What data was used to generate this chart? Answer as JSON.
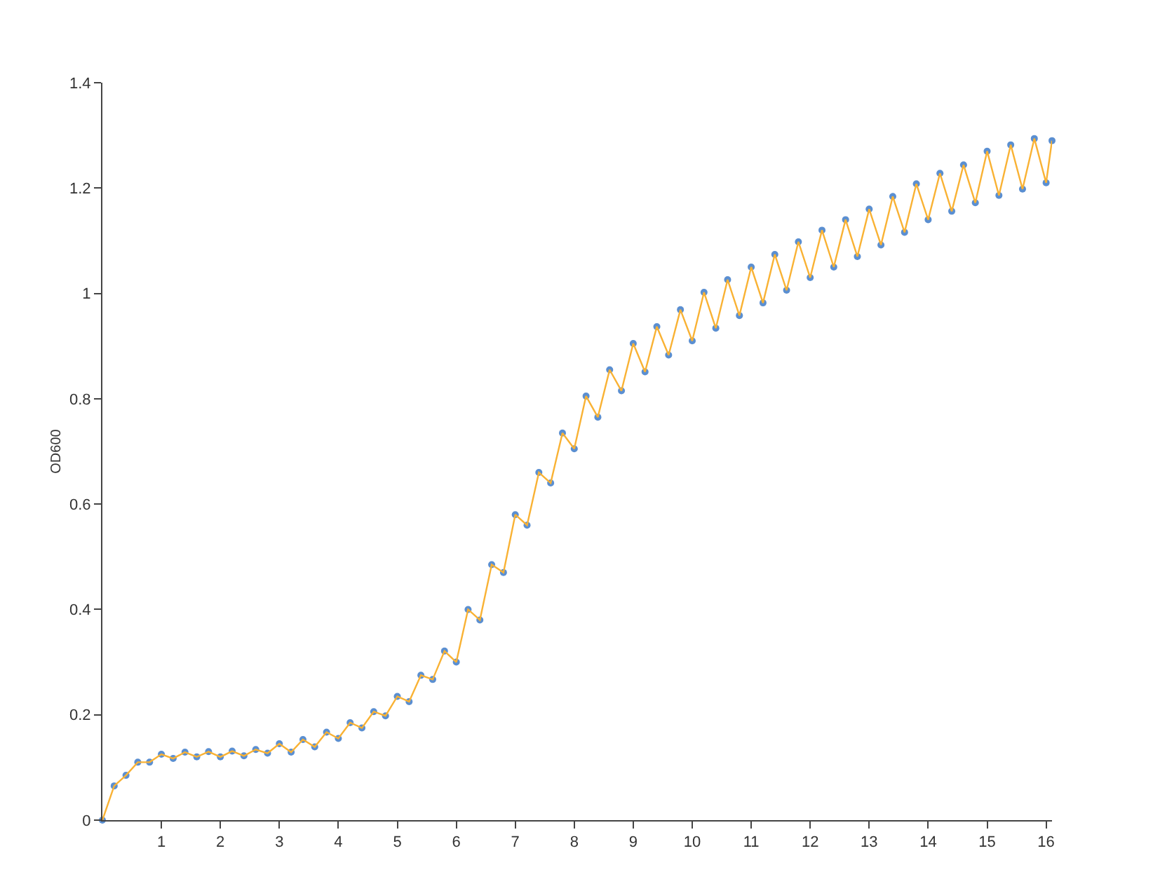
{
  "chart_data": {
    "type": "scatter",
    "ylabel": "OD600",
    "xlim": [
      0,
      16.1
    ],
    "xticks": [
      1,
      2,
      3,
      4,
      5,
      6,
      7,
      8,
      9,
      10,
      11,
      12,
      13,
      14,
      15,
      16
    ],
    "ylim": [
      0,
      1.4
    ],
    "yticks": [
      0,
      0.2,
      0.4,
      0.6,
      0.8,
      1,
      1.2,
      1.4
    ],
    "grid": false,
    "marker": "circle",
    "line_style": "solid",
    "x": [
      0,
      0.2,
      0.4,
      0.6,
      0.8,
      1,
      1.2,
      1.4,
      1.6,
      1.8,
      2,
      2.2,
      2.4,
      2.6,
      2.8,
      3,
      3.2,
      3.4,
      3.6,
      3.8,
      4,
      4.2,
      4.4,
      4.6,
      4.8,
      5,
      5.2,
      5.4,
      5.6,
      5.8,
      6,
      6.2,
      6.4,
      6.6,
      6.8,
      7,
      7.2,
      7.4,
      7.6,
      7.8,
      8,
      8.2,
      8.4,
      8.6,
      8.8,
      9,
      9.2,
      9.4,
      9.6,
      9.8,
      10,
      10.2,
      10.4,
      10.6,
      10.8,
      11,
      11.2,
      11.4,
      11.6,
      11.8,
      12,
      12.2,
      12.4,
      12.6,
      12.8,
      13,
      13.2,
      13.4,
      13.6,
      13.8,
      14,
      14.2,
      14.4,
      14.6,
      14.8,
      15,
      15.2,
      15.4,
      15.6,
      15.8,
      16,
      16.1
    ],
    "series": [
      {
        "color": "#5b8fd1",
        "values": [
          0,
          0.065,
          0.085,
          0.11,
          0.11,
          0.125,
          0.117,
          0.129,
          0.12,
          0.13,
          0.12,
          0.131,
          0.122,
          0.134,
          0.127,
          0.145,
          0.129,
          0.153,
          0.139,
          0.167,
          0.155,
          0.185,
          0.175,
          0.206,
          0.198,
          0.235,
          0.225,
          0.275,
          0.267,
          0.321,
          0.3,
          0.4,
          0.38,
          0.485,
          0.47,
          0.58,
          0.56,
          0.66,
          0.64,
          0.735,
          0.705,
          0.805,
          0.765,
          0.855,
          0.815,
          0.905,
          0.851,
          0.937,
          0.883,
          0.969,
          0.91,
          1.002,
          0.934,
          1.026,
          0.958,
          1.05,
          0.982,
          1.074,
          1.006,
          1.098,
          1.03,
          1.12,
          1.05,
          1.14,
          1.07,
          1.16,
          1.092,
          1.184,
          1.116,
          1.208,
          1.14,
          1.228,
          1.156,
          1.244,
          1.172,
          1.27,
          1.186,
          1.282,
          1.198,
          1.294,
          1.21,
          1.29
        ]
      },
      {
        "type": "line",
        "marker": "none",
        "color": "#f9b234",
        "values": [
          0,
          0.065,
          0.085,
          0.11,
          0.11,
          0.125,
          0.117,
          0.129,
          0.12,
          0.13,
          0.12,
          0.131,
          0.122,
          0.134,
          0.127,
          0.145,
          0.129,
          0.153,
          0.139,
          0.167,
          0.155,
          0.185,
          0.175,
          0.206,
          0.198,
          0.235,
          0.225,
          0.275,
          0.267,
          0.321,
          0.3,
          0.4,
          0.38,
          0.485,
          0.47,
          0.58,
          0.56,
          0.66,
          0.64,
          0.735,
          0.705,
          0.805,
          0.765,
          0.855,
          0.815,
          0.905,
          0.851,
          0.937,
          0.883,
          0.969,
          0.91,
          1.002,
          0.934,
          1.026,
          0.958,
          1.05,
          0.982,
          1.074,
          1.006,
          1.098,
          1.03,
          1.12,
          1.05,
          1.14,
          1.07,
          1.16,
          1.092,
          1.184,
          1.116,
          1.208,
          1.14,
          1.228,
          1.156,
          1.244,
          1.172,
          1.27,
          1.186,
          1.282,
          1.198,
          1.294,
          1.21,
          1.29
        ]
      }
    ]
  }
}
